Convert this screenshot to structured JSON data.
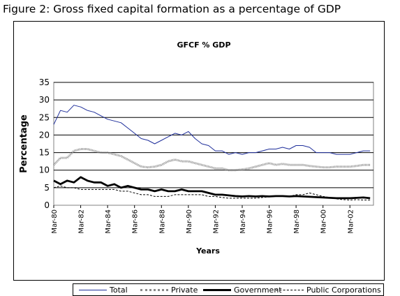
{
  "figure_title": "Figure 2: Gross fixed capital formation as a percentage of GDP",
  "chart_data": {
    "type": "line",
    "title": "GFCF % GDP",
    "xlabel": "Years",
    "ylabel": "Percentage",
    "ylim": [
      0,
      35
    ],
    "y_ticks": [
      "0",
      "5",
      "10",
      "15",
      "20",
      "25",
      "30",
      "35"
    ],
    "x_tick_labels": [
      "Mar-80",
      "Mar-82",
      "Mar-84",
      "Mar-86",
      "Mar-88",
      "Mar-90",
      "Mar-92",
      "Mar-94",
      "Mar-96",
      "Mar-98",
      "Mar-00",
      "Mar-02"
    ],
    "grid": "horizontal",
    "legend_position": "bottom",
    "x_start_year": 1980,
    "x_end_year": 2003.75,
    "series": [
      {
        "name": "Total",
        "color": "#1f2f9b",
        "x": [
          1980,
          1980.5,
          1981,
          1981.5,
          1982,
          1982.5,
          1983,
          1983.5,
          1984,
          1984.5,
          1985,
          1985.5,
          1986,
          1986.5,
          1987,
          1987.5,
          1988,
          1988.5,
          1989,
          1989.5,
          1990,
          1990.5,
          1991,
          1991.5,
          1992,
          1992.5,
          1993,
          1993.5,
          1994,
          1994.5,
          1995,
          1995.5,
          1996,
          1996.5,
          1997,
          1997.5,
          1998,
          1998.5,
          1999,
          1999.5,
          2000,
          2000.5,
          2001,
          2001.5,
          2002,
          2002.5,
          2003,
          2003.5
        ],
        "values": [
          23,
          27,
          26.5,
          28.5,
          28,
          27,
          26.5,
          25.5,
          24.5,
          24,
          23.5,
          22,
          20.5,
          19,
          18.5,
          17.5,
          18.5,
          19.5,
          20.5,
          20,
          21,
          19,
          17.5,
          17,
          15.5,
          15.5,
          14.5,
          15,
          14.5,
          15,
          15,
          15.5,
          16,
          16,
          16.5,
          16,
          17,
          17,
          16.5,
          15,
          15,
          15,
          14.5,
          14.5,
          14.5,
          15,
          15.5,
          15.5
        ]
      },
      {
        "name": "Private",
        "color": "#8a8a8a",
        "x": [
          1980,
          1980.5,
          1981,
          1981.5,
          1982,
          1982.5,
          1983,
          1983.5,
          1984,
          1984.5,
          1985,
          1985.5,
          1986,
          1986.5,
          1987,
          1987.5,
          1988,
          1988.5,
          1989,
          1989.5,
          1990,
          1990.5,
          1991,
          1991.5,
          1992,
          1992.5,
          1993,
          1993.5,
          1994,
          1994.5,
          1995,
          1995.5,
          1996,
          1996.5,
          1997,
          1997.5,
          1998,
          1998.5,
          1999,
          1999.5,
          2000,
          2000.5,
          2001,
          2001.5,
          2002,
          2002.5,
          2003,
          2003.5
        ],
        "values": [
          11.5,
          13.5,
          13.5,
          15.5,
          16,
          16,
          15.5,
          15,
          15,
          14.5,
          14,
          13,
          12,
          11,
          10.8,
          11,
          11.5,
          12.5,
          13,
          12.5,
          12.5,
          12,
          11.5,
          11,
          10.5,
          10.5,
          10,
          10,
          10.2,
          10.5,
          11,
          11.5,
          12,
          11.5,
          11.8,
          11.5,
          11.5,
          11.5,
          11.2,
          11,
          10.8,
          10.8,
          11,
          11,
          11,
          11.2,
          11.5,
          11.5
        ]
      },
      {
        "name": "Government",
        "color": "#000000",
        "x": [
          1980,
          1980.5,
          1981,
          1981.5,
          1982,
          1982.5,
          1983,
          1983.5,
          1984,
          1984.5,
          1985,
          1985.5,
          1986,
          1986.5,
          1987,
          1987.5,
          1988,
          1988.5,
          1989,
          1989.5,
          1990,
          1990.5,
          1991,
          1991.5,
          1992,
          1992.5,
          1993,
          1993.5,
          1994,
          1994.5,
          1995,
          1995.5,
          1996,
          1996.5,
          1997,
          1997.5,
          1998,
          1998.5,
          1999,
          1999.5,
          2000,
          2000.5,
          2001,
          2001.5,
          2002,
          2002.5,
          2003,
          2003.5
        ],
        "values": [
          7,
          6,
          7,
          6.5,
          8,
          7,
          6.5,
          6.5,
          5.5,
          6,
          5,
          5.5,
          5,
          4.5,
          4.5,
          4,
          4.5,
          4,
          4,
          4.5,
          4,
          4,
          4,
          3.5,
          3,
          3,
          2.8,
          2.6,
          2.5,
          2.6,
          2.5,
          2.6,
          2.5,
          2.6,
          2.6,
          2.5,
          2.6,
          2.5,
          2.4,
          2.3,
          2.2,
          2.1,
          2,
          2,
          2,
          2.1,
          2.2,
          2
        ]
      },
      {
        "name": "Public Corporations",
        "color": "#000000",
        "x": [
          1980,
          1980.5,
          1981,
          1981.5,
          1982,
          1982.5,
          1983,
          1983.5,
          1984,
          1984.5,
          1985,
          1985.5,
          1986,
          1986.5,
          1987,
          1987.5,
          1988,
          1988.5,
          1989,
          1989.5,
          1990,
          1990.5,
          1991,
          1991.5,
          1992,
          1992.5,
          1993,
          1993.5,
          1994,
          1994.5,
          1995,
          1995.5,
          1996,
          1996.5,
          1997,
          1997.5,
          1998,
          1998.5,
          1999,
          1999.5,
          2000,
          2000.5,
          2001,
          2001.5,
          2002,
          2002.5,
          2003,
          2003.5
        ],
        "values": [
          5,
          5.5,
          5,
          5,
          4.5,
          4.5,
          4.5,
          4.5,
          4.5,
          4.5,
          4,
          4,
          3.5,
          3,
          3,
          2.5,
          2.5,
          2.5,
          3,
          3,
          3,
          3,
          3,
          2.5,
          2.5,
          2.2,
          2,
          2,
          2,
          2,
          2,
          2.2,
          2.4,
          2.5,
          2.5,
          2.5,
          3,
          3,
          3.5,
          3,
          2.5,
          2.2,
          1.8,
          1.6,
          1.5,
          1.6,
          1.5,
          1.5
        ]
      }
    ]
  }
}
